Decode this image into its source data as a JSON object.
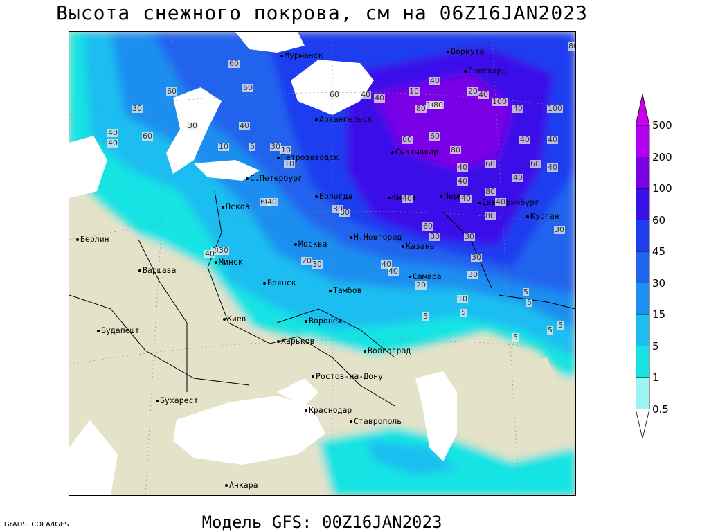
{
  "title": "Высота снежного покрова, см на 06Z16JAN2023",
  "subtitle": "Модель GFS: 00Z16JAN2023",
  "credit": "GrADS: COLA/IGES",
  "legend": {
    "levels": [
      {
        "label": "0.5",
        "color": "#ffffff"
      },
      {
        "label": "1",
        "color": "#9ef3f3"
      },
      {
        "label": "5",
        "color": "#18e3e3"
      },
      {
        "label": "15",
        "color": "#1dbdf0"
      },
      {
        "label": "30",
        "color": "#1e8ef0"
      },
      {
        "label": "45",
        "color": "#2064ee"
      },
      {
        "label": "60",
        "color": "#1e3ef0"
      },
      {
        "label": "100",
        "color": "#3a10e8"
      },
      {
        "label": "200",
        "color": "#7a00e6"
      },
      {
        "label": "500",
        "color": "#b000ee"
      }
    ],
    "top_color": "#cc00f0"
  },
  "cities": [
    {
      "name": "Мурманск"
    },
    {
      "name": "Воркута"
    },
    {
      "name": "Салехард"
    },
    {
      "name": "Архангельск"
    },
    {
      "name": "Петрозаводск"
    },
    {
      "name": "Сыктывкар"
    },
    {
      "name": "С.Петербург"
    },
    {
      "name": "Вологда"
    },
    {
      "name": "Киров"
    },
    {
      "name": "Пермь"
    },
    {
      "name": "Екатеринбург"
    },
    {
      "name": "Курган"
    },
    {
      "name": "Псков"
    },
    {
      "name": "Н.Новгород"
    },
    {
      "name": "Москва"
    },
    {
      "name": "Казань"
    },
    {
      "name": "Берлин"
    },
    {
      "name": "Минск"
    },
    {
      "name": "Варшава"
    },
    {
      "name": "Брянск"
    },
    {
      "name": "Тамбов"
    },
    {
      "name": "Самара"
    },
    {
      "name": "Киев"
    },
    {
      "name": "Воронеж"
    },
    {
      "name": "Будапешт"
    },
    {
      "name": "Харьков"
    },
    {
      "name": "Волгоград"
    },
    {
      "name": "Ростов-на-Дону"
    },
    {
      "name": "Бухарест"
    },
    {
      "name": "Краснодар"
    },
    {
      "name": "Ставрополь"
    },
    {
      "name": "Анкара"
    }
  ],
  "contour_labels": [
    "60",
    "80",
    "60",
    "60",
    "30",
    "40",
    "60",
    "40",
    "60",
    "40",
    "40",
    "10",
    "40",
    "20",
    "40",
    "100",
    "40",
    "100",
    "80",
    "40",
    "100",
    "80",
    "80",
    "60",
    "80",
    "40",
    "60",
    "40",
    "40",
    "80",
    "60",
    "80",
    "80",
    "80",
    "40",
    "40",
    "40",
    "40",
    "30",
    "60",
    "40",
    "40",
    "30",
    "40",
    "10",
    "10",
    "5",
    "10",
    "30",
    "20",
    "30",
    "40",
    "60",
    "40",
    "30",
    "40",
    "20",
    "30",
    "30",
    "40",
    "30",
    "30",
    "20",
    "10",
    "5",
    "5",
    "5",
    "5",
    "5",
    "5",
    "5"
  ]
}
